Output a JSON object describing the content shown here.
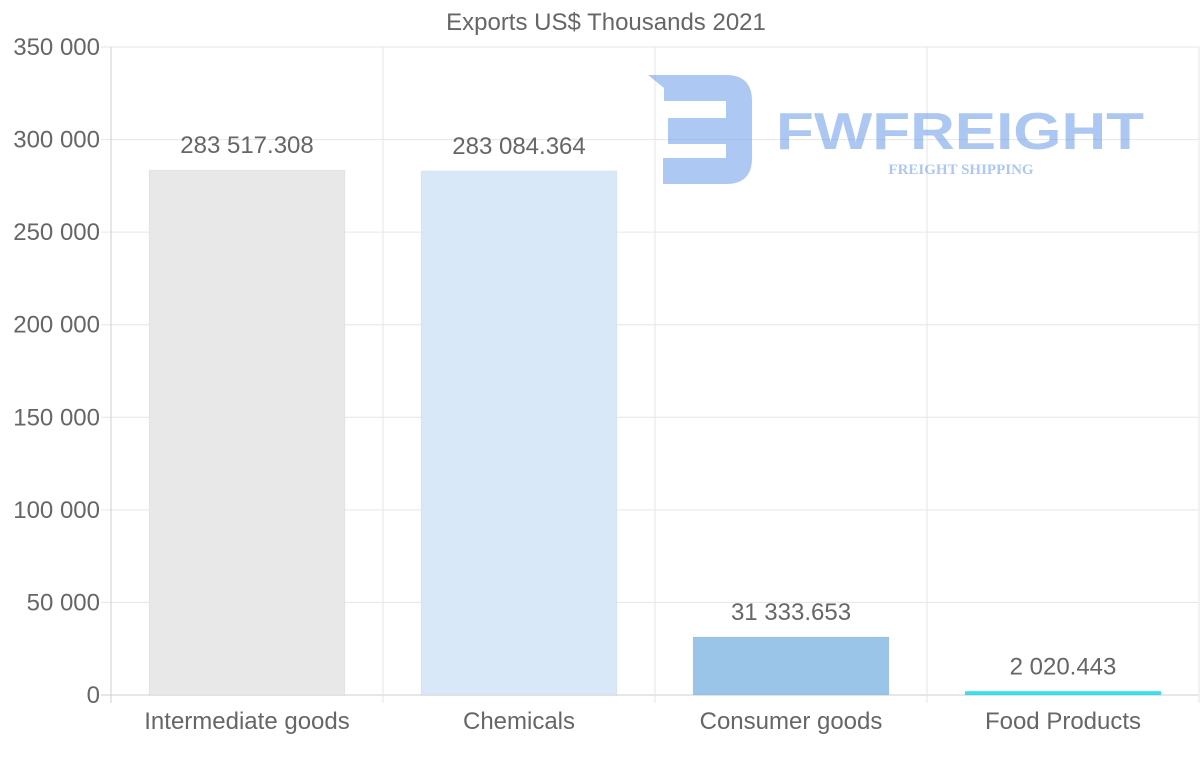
{
  "chart_data": {
    "type": "bar",
    "title": "Exports US$ Thousands 2021",
    "categories": [
      "Intermediate goods",
      "Chemicals",
      "Consumer goods",
      "Food Products"
    ],
    "values": [
      283517.308,
      283084.364,
      31333.653,
      2020.443
    ],
    "value_labels": [
      "283 517.308",
      "283 084.364",
      "31 333.653",
      "2 020.443"
    ],
    "colors": [
      "#e8e8e8",
      "#d8e8f8",
      "#9ac4e8",
      "#3ae0ea"
    ],
    "ylim": [
      0,
      350000
    ],
    "yticks": [
      0,
      50000,
      100000,
      150000,
      200000,
      250000,
      300000,
      350000
    ],
    "ytick_labels": [
      "0",
      "50 000",
      "100 000",
      "150 000",
      "200 000",
      "250 000",
      "300 000",
      "350 000"
    ],
    "xlabel": "",
    "ylabel": "",
    "grid": true,
    "legend": "none"
  },
  "watermark": {
    "brand": "FWFREIGHT",
    "tagline": "FREIGHT SHIPPING",
    "color": "#6a9be8"
  }
}
